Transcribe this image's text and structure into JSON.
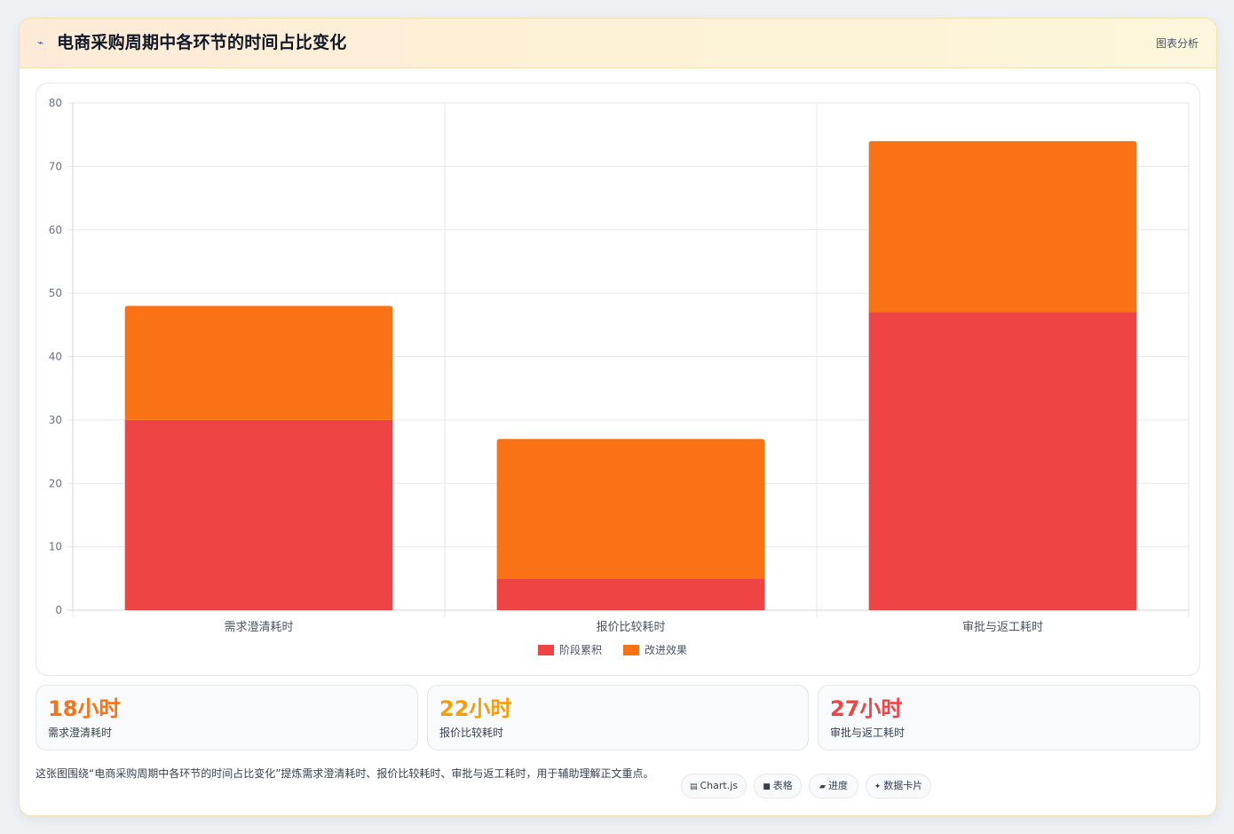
{
  "header": {
    "title": "电商采购周期中各环节的时间占比变化",
    "tag": "图表分析"
  },
  "chart_data": {
    "type": "bar",
    "stacked": true,
    "categories": [
      "需求澄清耗时",
      "报价比较耗时",
      "审批与返工耗时"
    ],
    "series": [
      {
        "name": "阶段累积",
        "values": [
          30,
          5,
          47
        ],
        "color": "#ef4444"
      },
      {
        "name": "改进效果",
        "values": [
          18,
          22,
          27
        ],
        "color": "#f97316"
      }
    ],
    "ylim": [
      0,
      80
    ],
    "yticks": [
      0,
      10,
      20,
      30,
      40,
      50,
      60,
      70,
      80
    ],
    "legend": "bottom",
    "grid": true
  },
  "stats": [
    {
      "value": "18小时",
      "label": "需求澄清耗时",
      "color": "#f97316"
    },
    {
      "value": "22小时",
      "label": "报价比较耗时",
      "color": "#f59e0b"
    },
    {
      "value": "27小时",
      "label": "审批与返工耗时",
      "color": "#ef4444"
    }
  ],
  "description": "这张图围绕“电商采购周期中各环节的时间占比变化”提炼需求澄清耗时、报价比较耗时、审批与返工耗时，用于辅助理解正文重点。",
  "chips": [
    {
      "label": "Chart.js",
      "icon": "chart-icon"
    },
    {
      "label": "表格",
      "icon": "table-icon"
    },
    {
      "label": "进度",
      "icon": "progress-icon"
    },
    {
      "label": "数据卡片",
      "icon": "sparkle-icon"
    }
  ]
}
